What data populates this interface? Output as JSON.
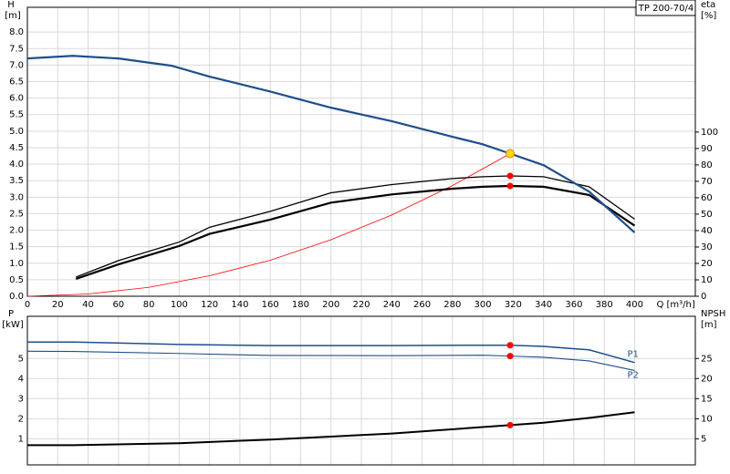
{
  "chart_data": [
    {
      "type": "line",
      "box_label": "TP 200-70/4",
      "y_label": "H",
      "y_unit": "[m]",
      "y2_label": "eta",
      "y2_unit": "[%]",
      "x_label": "Q [m³/h]",
      "xlim": [
        0,
        440
      ],
      "ylim": [
        0,
        8.75
      ],
      "y2lim": [
        0,
        176
      ],
      "grid": true,
      "xticks": [
        0,
        20,
        40,
        60,
        80,
        100,
        120,
        140,
        160,
        180,
        200,
        220,
        240,
        260,
        280,
        300,
        320,
        340,
        360,
        380,
        400
      ],
      "yticks": [
        {
          "value": 0,
          "label": "0.0"
        },
        0.5,
        {
          "value": 1,
          "label": "1.0"
        },
        1.5,
        {
          "value": 2,
          "label": "2.0"
        },
        2.5,
        {
          "value": 3,
          "label": "3.0"
        },
        3.5,
        {
          "value": 4,
          "label": "4.0"
        },
        4.5,
        {
          "value": 5,
          "label": "5.0"
        },
        5.5,
        {
          "value": 6,
          "label": "6.0"
        },
        6.5,
        {
          "value": 7,
          "label": "7.0"
        },
        7.5,
        {
          "value": 8,
          "label": "8.0"
        }
      ],
      "y2ticks": [
        0,
        10,
        20,
        30,
        40,
        50,
        60,
        70,
        80,
        90,
        100
      ],
      "series": [
        {
          "color": "#ff0000",
          "width": 0.8,
          "x": [
            0,
            40,
            80,
            120,
            160,
            200,
            240,
            280,
            318
          ],
          "values": [
            0,
            0.07,
            0.27,
            0.62,
            1.09,
            1.71,
            2.46,
            3.35,
            4.32
          ]
        },
        {
          "color": "#000000",
          "width": 1.3,
          "axis": "y2",
          "marker_at": 318,
          "marker_color": "#ff0000",
          "x": [
            32,
            60,
            100,
            120,
            160,
            200,
            240,
            280,
            300,
            318,
            340,
            370,
            400
          ],
          "values": [
            11.7,
            21.7,
            33,
            42,
            51.7,
            63,
            68,
            71.7,
            72.8,
            73.3,
            72.8,
            66.7,
            47
          ]
        },
        {
          "color": "#000000",
          "width": 2.2,
          "axis": "y2",
          "marker_at": 318,
          "marker_color": "#ff0000",
          "x": [
            32,
            60,
            100,
            120,
            160,
            200,
            240,
            280,
            300,
            318,
            340,
            370,
            400
          ],
          "values": [
            10.6,
            19.4,
            30.6,
            38,
            46.7,
            57,
            62,
            65.5,
            66.7,
            67.2,
            66.7,
            61.7,
            43
          ]
        },
        {
          "color": "#1f4e8c",
          "width": 2.2,
          "marker_at": 318,
          "marker_color": "#ffd700",
          "x": [
            0,
            30,
            60,
            95,
            120,
            160,
            200,
            240,
            280,
            300,
            318,
            340,
            370,
            400
          ],
          "values": [
            7.2,
            7.28,
            7.2,
            6.98,
            6.65,
            6.2,
            5.71,
            5.3,
            4.83,
            4.6,
            4.32,
            3.97,
            3.17,
            1.93
          ]
        }
      ]
    },
    {
      "type": "line",
      "y_label": "P",
      "y_unit": "[kW]",
      "y2_label": "NPSH",
      "y2_unit": "[m]",
      "xlim": [
        0,
        440
      ],
      "ylim": [
        -0.3,
        7.1
      ],
      "y2lim": [
        -1.5,
        35.5
      ],
      "grid": true,
      "xticks": [
        0,
        20,
        40,
        60,
        80,
        100,
        120,
        140,
        160,
        180,
        200,
        220,
        240,
        260,
        280,
        300,
        320,
        340,
        360,
        380,
        400
      ],
      "yticks": [
        1,
        2,
        3,
        4,
        5
      ],
      "y2ticks": [
        5,
        10,
        15,
        20,
        25
      ],
      "series": [
        {
          "name": "P1",
          "color": "#1f4e8c",
          "width": 1.5,
          "marker_at": 318,
          "marker_color": "#ff0000",
          "x": [
            0,
            30,
            100,
            160,
            240,
            300,
            318,
            340,
            370,
            400
          ],
          "values": [
            5.82,
            5.82,
            5.7,
            5.64,
            5.64,
            5.66,
            5.66,
            5.6,
            5.43,
            4.8
          ]
        },
        {
          "name": "P2",
          "color": "#1f4e8c",
          "width": 1.1,
          "marker_at": 318,
          "marker_color": "#ff0000",
          "x": [
            0,
            30,
            100,
            160,
            240,
            300,
            318,
            340,
            370,
            400
          ],
          "values": [
            5.36,
            5.35,
            5.25,
            5.15,
            5.14,
            5.16,
            5.12,
            5.06,
            4.88,
            4.4
          ]
        },
        {
          "color": "#000000",
          "width": 2,
          "axis": "y2",
          "marker_at": 318,
          "marker_color": "#ff0000",
          "x": [
            0,
            30,
            100,
            160,
            240,
            318,
            340,
            370,
            400
          ],
          "values": [
            3.4,
            3.4,
            3.9,
            4.8,
            6.3,
            8.4,
            9.0,
            10.2,
            11.6
          ]
        }
      ]
    }
  ]
}
